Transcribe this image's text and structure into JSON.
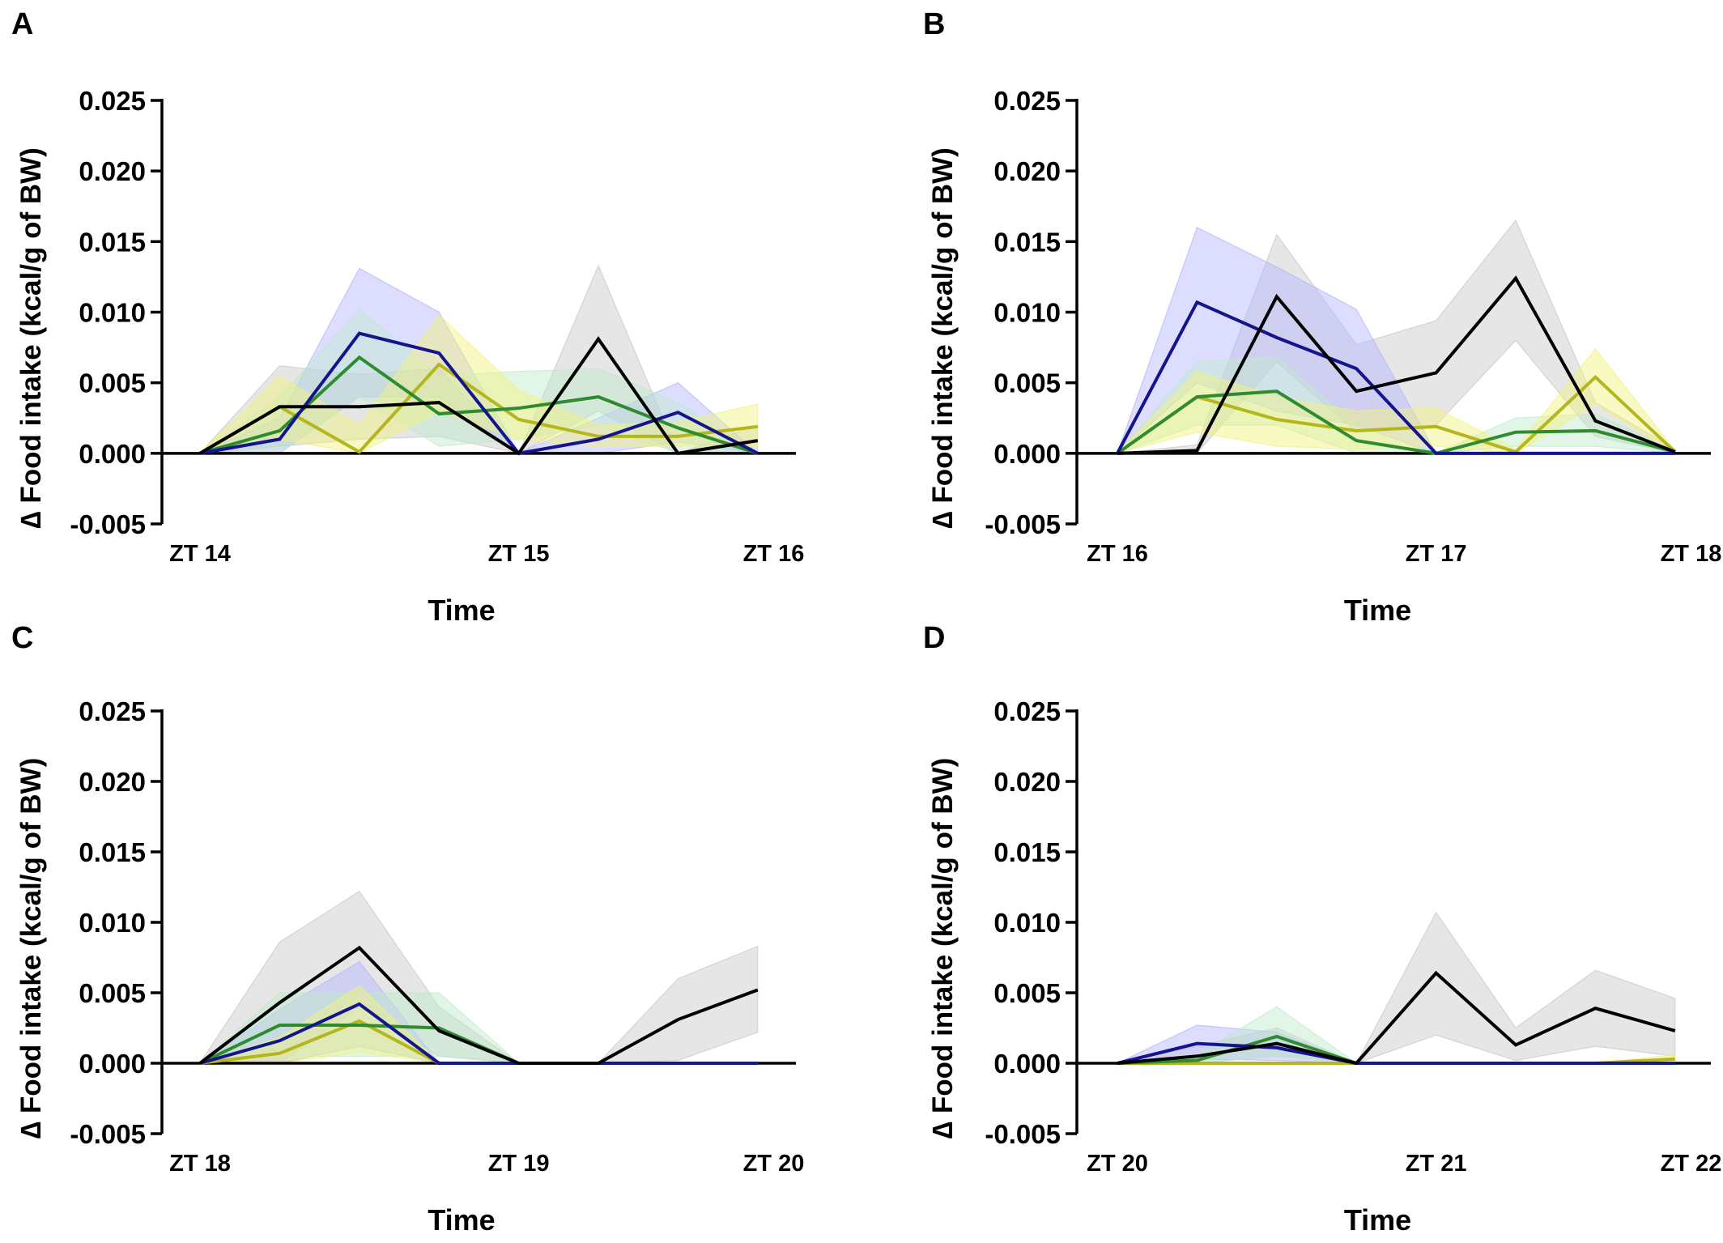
{
  "figure": {
    "y_label": "∆ Food intake (kcal/g of BW)",
    "x_label": "Time"
  },
  "colors": {
    "black": "#000000",
    "navy": "#14148c",
    "green": "#2e8b2e",
    "olive": "#b5b51c",
    "band_gray": "#c8c8c8",
    "band_blue": "#b4b4ff",
    "band_green": "#bfeacb",
    "band_yellow": "#f2f27a"
  },
  "chart_data": [
    {
      "panel": "A",
      "type": "line",
      "xlabel": "Time",
      "ylabel": "∆ Food intake (kcal/g of BW)",
      "ylim": [
        -0.005,
        0.025
      ],
      "yticks": [
        -0.005,
        0.0,
        0.005,
        0.01,
        0.015,
        0.02,
        0.025
      ],
      "xticks": [
        {
          "x": 0,
          "label": "ZT 14"
        },
        {
          "x": 4,
          "label": "ZT 15"
        },
        {
          "x": 7.2,
          "label": "ZT 16"
        }
      ],
      "x": [
        0,
        1,
        2,
        3,
        4,
        5,
        6,
        7
      ],
      "series": [
        {
          "color": "black",
          "band": "band_gray",
          "values": [
            0,
            0.0033,
            0.0033,
            0.0036,
            0.0,
            0.0081,
            0.0,
            0.0009
          ],
          "lower": [
            0,
            0.0005,
            0.001,
            0.0012,
            0,
            0.003,
            0,
            0
          ],
          "upper": [
            0,
            0.0062,
            0.0056,
            0.006,
            0,
            0.0133,
            0,
            0.002
          ]
        },
        {
          "color": "navy",
          "band": "band_blue",
          "values": [
            0,
            0.001,
            0.0085,
            0.0071,
            0.0,
            0.001,
            0.0029,
            0.0
          ],
          "lower": [
            0,
            0,
            0.004,
            0.004,
            0,
            0,
            0.0008,
            0
          ],
          "upper": [
            0,
            0.0025,
            0.0131,
            0.01,
            0,
            0.0025,
            0.005,
            0
          ]
        },
        {
          "color": "green",
          "band": "band_green",
          "values": [
            0,
            0.0016,
            0.0068,
            0.0028,
            0.0032,
            0.004,
            0.0018,
            0.0
          ],
          "lower": [
            0,
            0,
            0.004,
            0.0005,
            0.001,
            0.002,
            0,
            0
          ],
          "upper": [
            0,
            0.004,
            0.0102,
            0.0055,
            0.0058,
            0.006,
            0.0036,
            0
          ]
        },
        {
          "color": "olive",
          "band": "band_yellow",
          "values": [
            0,
            0.0033,
            0.0001,
            0.0063,
            0.0024,
            0.0012,
            0.0012,
            0.0019
          ],
          "lower": [
            0,
            0.001,
            0,
            0.003,
            0.001,
            0.0005,
            0.0005,
            0.0005
          ],
          "upper": [
            0,
            0.0055,
            0.002,
            0.0098,
            0.0045,
            0.002,
            0.0022,
            0.0035
          ]
        }
      ]
    },
    {
      "panel": "B",
      "type": "line",
      "xlabel": "Time",
      "ylabel": "∆ Food intake (kcal/g of BW)",
      "ylim": [
        -0.005,
        0.025
      ],
      "yticks": [
        -0.005,
        0.0,
        0.005,
        0.01,
        0.015,
        0.02,
        0.025
      ],
      "xticks": [
        {
          "x": 0,
          "label": "ZT 16"
        },
        {
          "x": 4,
          "label": "ZT 17"
        },
        {
          "x": 7.2,
          "label": "ZT 18"
        }
      ],
      "x": [
        0,
        1,
        2,
        3,
        4,
        5,
        6,
        7
      ],
      "series": [
        {
          "color": "black",
          "band": "band_gray",
          "values": [
            0,
            0.0002,
            0.0111,
            0.0044,
            0.0057,
            0.0124,
            0.0023,
            0.0001
          ],
          "lower": [
            0,
            0,
            0.0065,
            0.0015,
            0.002,
            0.008,
            0.0012,
            0
          ],
          "upper": [
            0,
            0.0006,
            0.0155,
            0.0077,
            0.0094,
            0.0165,
            0.0036,
            0.0003
          ]
        },
        {
          "color": "navy",
          "band": "band_blue",
          "values": [
            0,
            0.0107,
            0.0082,
            0.006,
            0.0,
            0.0,
            0.0,
            0.0
          ],
          "lower": [
            0,
            0.005,
            0.003,
            0.002,
            0,
            0,
            0,
            0
          ],
          "upper": [
            0,
            0.016,
            0.0132,
            0.0102,
            0,
            0,
            0,
            0
          ]
        },
        {
          "color": "green",
          "band": "band_green",
          "values": [
            0,
            0.004,
            0.0044,
            0.0009,
            0.0,
            0.0015,
            0.0016,
            0.0001
          ],
          "lower": [
            0,
            0.002,
            0.002,
            0,
            0,
            0.0005,
            0.0005,
            0
          ],
          "upper": [
            0,
            0.0065,
            0.0068,
            0.002,
            0,
            0.0025,
            0.0028,
            0.0002
          ]
        },
        {
          "color": "olive",
          "band": "band_yellow",
          "values": [
            0,
            0.004,
            0.0024,
            0.0016,
            0.0019,
            0.0001,
            0.0054,
            0.0001
          ],
          "lower": [
            0,
            0.0015,
            0.0005,
            0.0003,
            0.0005,
            0,
            0.0035,
            0
          ],
          "upper": [
            0,
            0.0058,
            0.004,
            0.003,
            0.0032,
            0.0003,
            0.0074,
            0.0002
          ]
        }
      ]
    },
    {
      "panel": "C",
      "type": "line",
      "xlabel": "Time",
      "ylabel": "∆ Food intake (kcal/g of BW)",
      "ylim": [
        -0.005,
        0.025
      ],
      "yticks": [
        -0.005,
        0.0,
        0.005,
        0.01,
        0.015,
        0.02,
        0.025
      ],
      "xticks": [
        {
          "x": 0,
          "label": "ZT 18"
        },
        {
          "x": 4,
          "label": "ZT 19"
        },
        {
          "x": 7.2,
          "label": "ZT 20"
        }
      ],
      "x": [
        0,
        1,
        2,
        3,
        4,
        5,
        6,
        7
      ],
      "series": [
        {
          "color": "black",
          "band": "band_gray",
          "values": [
            0,
            0.0043,
            0.0082,
            0.0023,
            0.0,
            0.0,
            0.0031,
            0.0052
          ],
          "lower": [
            0,
            0.0,
            0.004,
            0.0005,
            0,
            0,
            0.0002,
            0.0022
          ],
          "upper": [
            0,
            0.0086,
            0.0122,
            0.004,
            0,
            0,
            0.006,
            0.0083
          ]
        },
        {
          "color": "navy",
          "band": "band_blue",
          "values": [
            0,
            0.0016,
            0.0042,
            0.0,
            0.0,
            0.0,
            0.0,
            0.0
          ],
          "lower": [
            0,
            0,
            0.0012,
            0,
            0,
            0,
            0,
            0
          ],
          "upper": [
            0,
            0.0038,
            0.0072,
            0,
            0,
            0,
            0,
            0
          ]
        },
        {
          "color": "green",
          "band": "band_green",
          "values": [
            0,
            0.0027,
            0.0027,
            0.0025,
            0.0,
            0.0,
            0.0,
            0.0
          ],
          "lower": [
            0,
            0.0005,
            0.0005,
            0.0005,
            0,
            0,
            0,
            0
          ],
          "upper": [
            0,
            0.005,
            0.005,
            0.005,
            0,
            0,
            0,
            0
          ]
        },
        {
          "color": "olive",
          "band": "band_yellow",
          "values": [
            0,
            0.0007,
            0.003,
            0.0,
            0.0,
            0.0,
            0.0,
            0.0
          ],
          "lower": [
            0,
            0,
            0.0008,
            0,
            0,
            0,
            0,
            0
          ],
          "upper": [
            0,
            0.0018,
            0.0055,
            0,
            0,
            0,
            0,
            0
          ]
        }
      ]
    },
    {
      "panel": "D",
      "type": "line",
      "xlabel": "Time",
      "ylabel": "∆ Food intake (kcal/g of BW)",
      "ylim": [
        -0.005,
        0.025
      ],
      "yticks": [
        -0.005,
        0.0,
        0.005,
        0.01,
        0.015,
        0.02,
        0.025
      ],
      "xticks": [
        {
          "x": 0,
          "label": "ZT 20"
        },
        {
          "x": 4,
          "label": "ZT 21"
        },
        {
          "x": 7.2,
          "label": "ZT 22"
        }
      ],
      "x": [
        0,
        1,
        2,
        3,
        4,
        5,
        6,
        7
      ],
      "series": [
        {
          "color": "black",
          "band": "band_gray",
          "values": [
            0,
            0.0005,
            0.0014,
            0.0,
            0.0064,
            0.0013,
            0.0039,
            0.0023
          ],
          "lower": [
            0,
            0,
            0.0005,
            0,
            0.002,
            0.0002,
            0.0012,
            0.0005
          ],
          "upper": [
            0,
            0.0012,
            0.0025,
            0,
            0.0107,
            0.0025,
            0.0066,
            0.0046
          ]
        },
        {
          "color": "navy",
          "band": "band_blue",
          "values": [
            0,
            0.0014,
            0.0011,
            0.0,
            0.0,
            0.0,
            0.0,
            0.0
          ],
          "lower": [
            0,
            0.0003,
            0.0002,
            0,
            0,
            0,
            0,
            0
          ],
          "upper": [
            0,
            0.0027,
            0.0022,
            0,
            0,
            0,
            0,
            0
          ]
        },
        {
          "color": "green",
          "band": "band_green",
          "values": [
            0,
            0.0002,
            0.0019,
            0.0,
            0.0,
            0.0,
            0.0,
            0.0
          ],
          "lower": [
            0,
            0,
            0.0005,
            0,
            0,
            0,
            0,
            0
          ],
          "upper": [
            0,
            0.0006,
            0.004,
            0,
            0,
            0,
            0,
            0
          ]
        },
        {
          "color": "olive",
          "band": "band_yellow",
          "values": [
            0,
            0.0,
            0.0,
            0.0,
            0.0,
            0.0,
            0.0,
            0.0003
          ],
          "lower": [
            0,
            0,
            0,
            0,
            0,
            0,
            0,
            0
          ],
          "upper": [
            0,
            0,
            0,
            0,
            0,
            0,
            0,
            0.0006
          ]
        }
      ]
    }
  ]
}
